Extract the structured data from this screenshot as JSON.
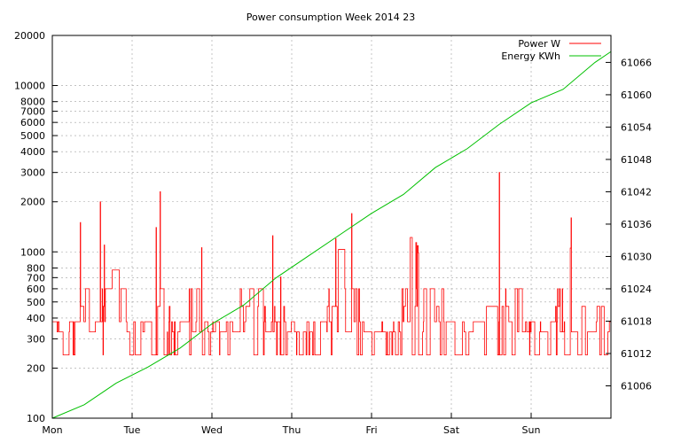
{
  "chart_data": {
    "type": "line",
    "title": "Power consumption Week 2014 23",
    "xlabel": "",
    "ylabel": "",
    "y2label": "",
    "x_ticks": [
      "Mon",
      "Tue",
      "Wed",
      "Thu",
      "Fri",
      "Sat",
      "Sun"
    ],
    "x_range_days": [
      0,
      7
    ],
    "y_scale": "log",
    "y_range": [
      100,
      20000
    ],
    "y_ticks": [
      100,
      200,
      300,
      400,
      500,
      600,
      700,
      800,
      1000,
      2000,
      3000,
      4000,
      5000,
      6000,
      7000,
      8000,
      10000,
      20000
    ],
    "y2_range": [
      61000,
      61071
    ],
    "y2_ticks": [
      61006,
      61012,
      61018,
      61024,
      61030,
      61036,
      61042,
      61048,
      61054,
      61060,
      61066
    ],
    "grid": true,
    "legend_position": "top-right",
    "series": [
      {
        "name": "Power W",
        "color": "#ff0000",
        "axis": "left",
        "note_levels": [
          240,
          330,
          380,
          470,
          600
        ],
        "peaks": [
          {
            "day": 0.35,
            "value": 1500
          },
          {
            "day": 0.6,
            "value": 2000
          },
          {
            "day": 0.65,
            "value": 1100
          },
          {
            "day": 1.35,
            "value": 2300
          },
          {
            "day": 1.3,
            "value": 1400
          },
          {
            "day": 3.55,
            "value": 1200
          },
          {
            "day": 3.75,
            "value": 1700
          },
          {
            "day": 5.6,
            "value": 3000
          },
          {
            "day": 6.5,
            "value": 1600
          }
        ]
      },
      {
        "name": "Energy KWh",
        "color": "#00c000",
        "axis": "right",
        "x": [
          0,
          0.4,
          0.8,
          1.2,
          1.6,
          2.0,
          2.4,
          2.8,
          3.2,
          3.6,
          4.0,
          4.4,
          4.8,
          5.2,
          5.6,
          6.0,
          6.4,
          6.8,
          7.0
        ],
        "values": [
          61000.0,
          61002.5,
          61006.5,
          61009.5,
          61013.0,
          61017.5,
          61021.0,
          61026.0,
          61030.0,
          61034.0,
          61038.0,
          61041.5,
          61046.5,
          61050.0,
          61054.5,
          61058.5,
          61061.0,
          61066.0,
          61068.0
        ]
      }
    ]
  }
}
